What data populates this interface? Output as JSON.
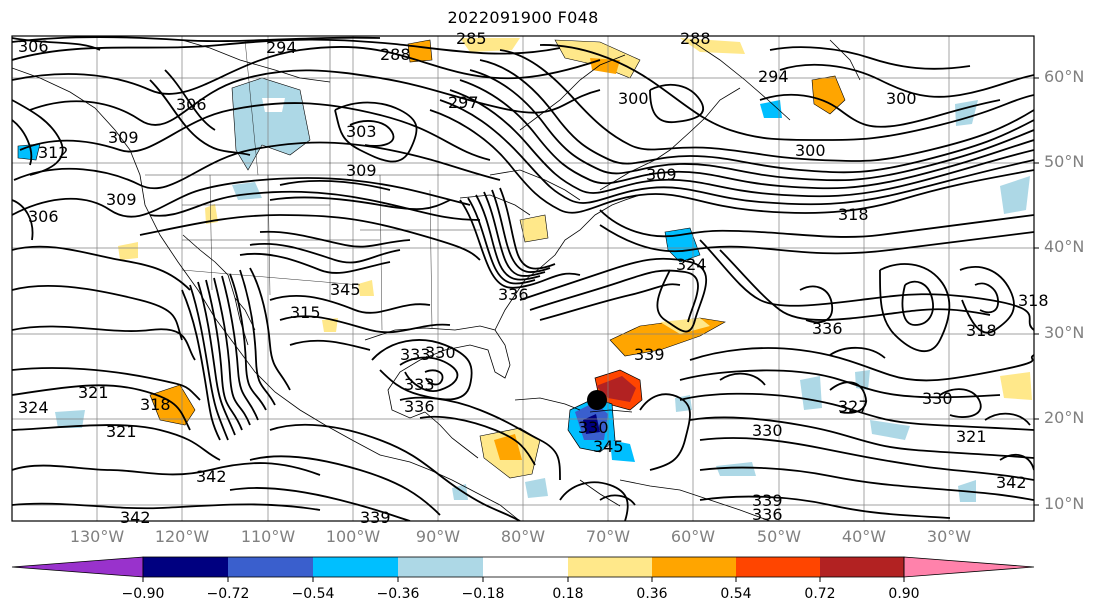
{
  "title": "2022091900 F048",
  "map": {
    "projection": "Mercator",
    "latitude_labels": [
      "10°N",
      "20°N",
      "30°N",
      "40°N",
      "50°N",
      "60°N"
    ],
    "longitude_labels": [
      "130°W",
      "120°W",
      "110°W",
      "100°W",
      "90°W",
      "80°W",
      "70°W",
      "60°W",
      "50°W",
      "40°W",
      "30°W"
    ],
    "contour_labels": [
      "306",
      "294",
      "288",
      "285",
      "288",
      "294",
      "300",
      "306",
      "312",
      "309",
      "309",
      "303",
      "309",
      "297",
      "300",
      "300",
      "318",
      "306",
      "309",
      "324",
      "321",
      "318",
      "321",
      "315",
      "345",
      "330",
      "333",
      "336",
      "339",
      "324",
      "336",
      "318",
      "327",
      "330",
      "330",
      "333",
      "336",
      "342",
      "342",
      "339",
      "339",
      "336",
      "321",
      "342",
      "345",
      "330",
      "318"
    ],
    "storm_marker": "black-filled-circle",
    "colors": {
      "land_outline": "#000000",
      "grid": "#808080",
      "contour": "#000000"
    }
  },
  "colorbar": {
    "extend": "both",
    "tick_labels": [
      "−0.90",
      "−0.72",
      "−0.54",
      "−0.36",
      "−0.18",
      "0.18",
      "0.36",
      "0.54",
      "0.72",
      "0.90"
    ],
    "colors": [
      "#9932cc",
      "#000080",
      "#3a5fcd",
      "#00bfff",
      "#add8e6",
      "#ffffff",
      "#ffe88a",
      "#ffa500",
      "#ff4500",
      "#b22222",
      "#ff82ab"
    ]
  }
}
